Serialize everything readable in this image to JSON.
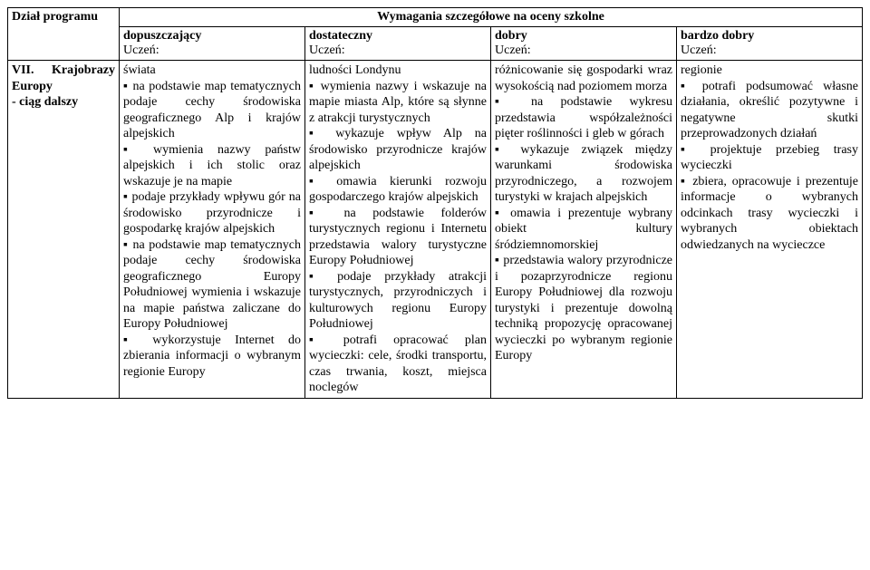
{
  "header": {
    "col1_title": "Dział programu",
    "merged_title": "Wymagania szczegółowe na oceny szkolne",
    "grades": {
      "g1": "dopuszczający",
      "g2": "dostateczny",
      "g3": "dobry",
      "g4": "bardzo dobry"
    },
    "student_label": "Uczeń:"
  },
  "row": {
    "section": "VII. Krajobrazy Europy\n- ciąg dalszy",
    "c1": "świata\n▪ na podstawie map tematycznych podaje cechy środowiska geograficznego Alp i krajów alpejskich\n▪ wymienia nazwy państw alpejskich i ich stolic oraz wskazuje je na mapie\n▪ podaje przykłady wpływu gór na środowisko przyrodnicze i gospodarkę krajów alpejskich\n▪ na podstawie map tematycznych podaje cechy środowiska geograficznego Europy Południowej wymienia i wskazuje na mapie państwa zaliczane do Europy Południowej\n▪ wykorzystuje Internet do zbierania informacji o wybranym regionie Europy",
    "c2": "ludności Londynu\n▪ wymienia nazwy i wskazuje na mapie miasta Alp, które są słynne z atrakcji turystycznych\n▪ wykazuje wpływ Alp na środowisko przyrodnicze krajów alpejskich\n▪ omawia kierunki rozwoju gospodarczego krajów alpejskich\n▪ na podstawie folderów turystycznych regionu i Internetu przedstawia walory turystyczne Europy Południowej\n▪ podaje przykłady atrakcji turystycznych, przyrodniczych i kulturowych regionu Europy Południowej\n▪ potrafi opracować plan wycieczki: cele, środki transportu, czas trwania, koszt, miejsca noclegów",
    "c3": "różnicowanie się gospodarki wraz wysokością nad poziomem morza\n▪ na podstawie wykresu przedstawia współzależności pięter roślinności i gleb w górach\n▪ wykazuje związek między warunkami środowiska przyrodniczego, a rozwojem turystyki w krajach alpejskich\n▪ omawia i prezentuje wybrany obiekt kultury śródziemnomorskiej\n▪ przedstawia walory przyrodnicze i pozaprzyrodnicze regionu Europy Południowej dla rozwoju turystyki i prezentuje dowolną techniką propozycję opracowanej wycieczki po wybranym regionie Europy",
    "c4": "regionie\n▪ potrafi podsumować własne działania, określić pozytywne i negatywne skutki przeprowadzonych działań\n▪ projektuje przebieg trasy wycieczki\n▪ zbiera, opracowuje i prezentuje informacje o wybranych odcinkach trasy wycieczki i wybranych obiektach odwiedzanych na wycieczce"
  }
}
